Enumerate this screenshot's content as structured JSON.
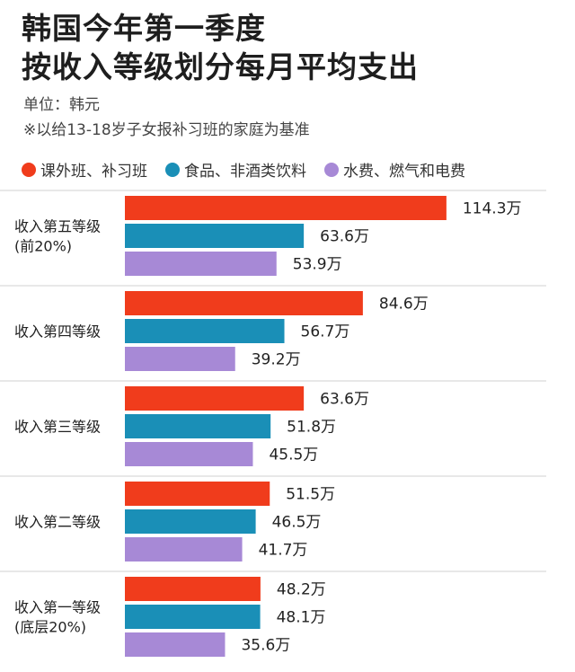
{
  "title_line1": "韩国今年第一季度",
  "title_line2": "按收入等级划分每月平均支出",
  "unit_text": "单位：韩元",
  "note_text": "※以给13-18岁子女报补习班的家庭为基准",
  "colors": {
    "series1": "#f03c1c",
    "series2": "#1a8fb7",
    "series3": "#a789d6"
  },
  "chart_data": {
    "type": "bar",
    "orientation": "horizontal",
    "categories": [
      [
        "收入第五等级",
        "(前20%)"
      ],
      [
        "收入第四等级"
      ],
      [
        "收入第三等级"
      ],
      [
        "收入第二等级"
      ],
      [
        "收入第一等级",
        "(底层20%)"
      ]
    ],
    "series": [
      {
        "name": "课外班、补习班",
        "values": [
          114.3,
          84.6,
          63.6,
          51.5,
          48.2
        ],
        "labels": [
          "114.3万",
          "84.6万",
          "63.6万",
          "51.5万",
          "48.2万"
        ]
      },
      {
        "name": "食品、非酒类饮料",
        "values": [
          63.6,
          56.7,
          51.8,
          46.5,
          48.1
        ],
        "labels": [
          "63.6万",
          "56.7万",
          "51.8万",
          "46.5万",
          "48.1万"
        ]
      },
      {
        "name": "水费、燃气和电费",
        "values": [
          53.9,
          39.2,
          45.5,
          41.7,
          35.6
        ],
        "labels": [
          "53.9万",
          "39.2万",
          "45.5万",
          "41.7万",
          "35.6万"
        ]
      }
    ],
    "unit": "万",
    "xlim": [
      0,
      120
    ],
    "legend_position": "top"
  }
}
